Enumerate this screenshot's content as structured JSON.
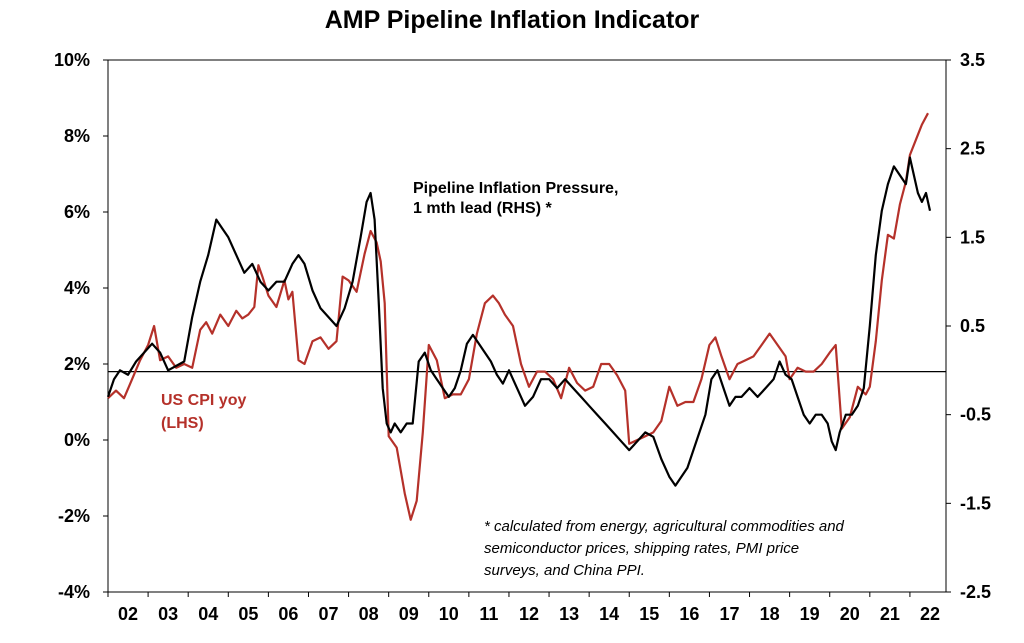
{
  "chart_data": {
    "type": "line",
    "title": "AMP Pipeline Inflation Indicator",
    "x_tick_labels": [
      "02",
      "03",
      "04",
      "05",
      "06",
      "07",
      "08",
      "09",
      "10",
      "11",
      "12",
      "13",
      "14",
      "15",
      "16",
      "17",
      "18",
      "19",
      "20",
      "21",
      "22"
    ],
    "y_left_tick_labels": [
      "10%",
      "8%",
      "6%",
      "4%",
      "2%",
      "0%",
      "-2%",
      "-4%"
    ],
    "y_right_tick_labels": [
      "3.5",
      "2.5",
      "1.5",
      "0.5",
      "-0.5",
      "-1.5",
      "-2.5"
    ],
    "y_left_lim": [
      -4,
      10
    ],
    "y_right_lim": [
      -2.5,
      3.5
    ],
    "x_lim": [
      2002.0,
      2022.9
    ],
    "reference_line_left": 1.8,
    "colors": {
      "cpi": "#b5312a",
      "pipeline": "#000000",
      "axis": "#000000"
    },
    "annotations": {
      "pipeline_label_line1": "Pipeline Inflation Pressure,",
      "pipeline_label_line2": "1 mth lead (RHS) *",
      "cpi_label_line1": "US CPI yoy",
      "cpi_label_line2": "(LHS)",
      "footnote_line1": "* calculated from energy, agricultural commodities and",
      "footnote_line2": "semiconductor prices, shipping rates, PMI price",
      "footnote_line3": "surveys, and China PPI."
    },
    "series": [
      {
        "name": "US CPI yoy",
        "axis": "left",
        "x": [
          2002.0,
          2002.2,
          2002.4,
          2002.6,
          2002.8,
          2003.0,
          2003.15,
          2003.3,
          2003.5,
          2003.7,
          2003.9,
          2004.1,
          2004.3,
          2004.45,
          2004.6,
          2004.8,
          2005.0,
          2005.2,
          2005.35,
          2005.5,
          2005.65,
          2005.75,
          2005.85,
          2006.0,
          2006.2,
          2006.4,
          2006.5,
          2006.6,
          2006.75,
          2006.9,
          2007.1,
          2007.3,
          2007.5,
          2007.7,
          2007.85,
          2008.0,
          2008.2,
          2008.4,
          2008.55,
          2008.7,
          2008.8,
          2008.9,
          2009.0,
          2009.2,
          2009.4,
          2009.55,
          2009.7,
          2009.85,
          2010.0,
          2010.2,
          2010.4,
          2010.6,
          2010.8,
          2011.0,
          2011.2,
          2011.4,
          2011.6,
          2011.75,
          2011.9,
          2012.1,
          2012.3,
          2012.5,
          2012.7,
          2012.9,
          2013.1,
          2013.3,
          2013.5,
          2013.7,
          2013.9,
          2014.1,
          2014.3,
          2014.5,
          2014.7,
          2014.9,
          2015.0,
          2015.2,
          2015.4,
          2015.6,
          2015.8,
          2016.0,
          2016.2,
          2016.4,
          2016.6,
          2016.8,
          2017.0,
          2017.15,
          2017.3,
          2017.5,
          2017.7,
          2017.9,
          2018.1,
          2018.3,
          2018.5,
          2018.7,
          2018.9,
          2019.0,
          2019.2,
          2019.4,
          2019.6,
          2019.8,
          2020.0,
          2020.15,
          2020.3,
          2020.5,
          2020.7,
          2020.9,
          2021.0,
          2021.15,
          2021.3,
          2021.45,
          2021.6,
          2021.75,
          2021.9,
          2022.0,
          2022.15,
          2022.3,
          2022.45
        ],
        "y": [
          1.1,
          1.3,
          1.1,
          1.6,
          2.1,
          2.5,
          3.0,
          2.1,
          2.2,
          1.9,
          2.0,
          1.9,
          2.9,
          3.1,
          2.8,
          3.3,
          3.0,
          3.4,
          3.2,
          3.3,
          3.5,
          4.6,
          4.3,
          3.8,
          3.5,
          4.2,
          3.7,
          3.9,
          2.1,
          2.0,
          2.6,
          2.7,
          2.4,
          2.6,
          4.3,
          4.2,
          3.9,
          4.9,
          5.5,
          5.2,
          4.7,
          3.6,
          0.1,
          -0.2,
          -1.4,
          -2.1,
          -1.6,
          0.2,
          2.5,
          2.1,
          1.1,
          1.2,
          1.2,
          1.6,
          2.8,
          3.6,
          3.8,
          3.6,
          3.3,
          3.0,
          2.0,
          1.4,
          1.8,
          1.8,
          1.6,
          1.1,
          1.9,
          1.5,
          1.3,
          1.4,
          2.0,
          2.0,
          1.7,
          1.3,
          -0.1,
          0.0,
          0.1,
          0.2,
          0.5,
          1.4,
          0.9,
          1.0,
          1.0,
          1.6,
          2.5,
          2.7,
          2.2,
          1.6,
          2.0,
          2.1,
          2.2,
          2.5,
          2.8,
          2.5,
          2.2,
          1.6,
          1.9,
          1.8,
          1.8,
          2.0,
          2.3,
          2.5,
          0.3,
          0.6,
          1.4,
          1.2,
          1.4,
          2.6,
          4.2,
          5.4,
          5.3,
          6.2,
          6.8,
          7.5,
          7.9,
          8.3,
          8.6
        ]
      },
      {
        "name": "Pipeline Inflation Pressure, 1 mth lead (RHS) *",
        "axis": "right",
        "x": [
          2002.0,
          2002.15,
          2002.3,
          2002.5,
          2002.7,
          2002.9,
          2003.1,
          2003.3,
          2003.5,
          2003.7,
          2003.9,
          2004.1,
          2004.3,
          2004.5,
          2004.7,
          2004.85,
          2005.0,
          2005.2,
          2005.4,
          2005.6,
          2005.8,
          2006.0,
          2006.2,
          2006.4,
          2006.6,
          2006.75,
          2006.9,
          2007.1,
          2007.3,
          2007.5,
          2007.7,
          2007.9,
          2008.1,
          2008.3,
          2008.45,
          2008.55,
          2008.65,
          2008.75,
          2008.85,
          2008.95,
          2009.05,
          2009.15,
          2009.3,
          2009.45,
          2009.6,
          2009.75,
          2009.9,
          2010.05,
          2010.2,
          2010.35,
          2010.5,
          2010.65,
          2010.8,
          2010.95,
          2011.1,
          2011.25,
          2011.4,
          2011.55,
          2011.7,
          2011.85,
          2012.0,
          2012.2,
          2012.4,
          2012.6,
          2012.8,
          2013.0,
          2013.2,
          2013.4,
          2013.6,
          2013.8,
          2014.0,
          2014.2,
          2014.4,
          2014.6,
          2014.8,
          2015.0,
          2015.2,
          2015.4,
          2015.6,
          2015.8,
          2016.0,
          2016.15,
          2016.3,
          2016.45,
          2016.6,
          2016.75,
          2016.9,
          2017.05,
          2017.2,
          2017.35,
          2017.5,
          2017.65,
          2017.8,
          2018.0,
          2018.2,
          2018.4,
          2018.6,
          2018.75,
          2018.9,
          2019.05,
          2019.2,
          2019.35,
          2019.5,
          2019.65,
          2019.8,
          2019.95,
          2020.05,
          2020.15,
          2020.25,
          2020.4,
          2020.55,
          2020.7,
          2020.85,
          2021.0,
          2021.15,
          2021.3,
          2021.45,
          2021.6,
          2021.75,
          2021.9,
          2022.0,
          2022.1,
          2022.2,
          2022.3,
          2022.4,
          2022.5
        ],
        "y": [
          -0.3,
          -0.1,
          0.0,
          -0.05,
          0.1,
          0.2,
          0.3,
          0.2,
          0.0,
          0.05,
          0.1,
          0.6,
          1.0,
          1.3,
          1.7,
          1.6,
          1.5,
          1.3,
          1.1,
          1.2,
          1.0,
          0.9,
          1.0,
          1.0,
          1.2,
          1.3,
          1.2,
          0.9,
          0.7,
          0.6,
          0.5,
          0.7,
          1.0,
          1.5,
          1.9,
          2.0,
          1.7,
          0.8,
          -0.2,
          -0.6,
          -0.7,
          -0.6,
          -0.7,
          -0.6,
          -0.6,
          0.1,
          0.2,
          0.0,
          -0.1,
          -0.2,
          -0.3,
          -0.2,
          0.0,
          0.3,
          0.4,
          0.3,
          0.2,
          0.1,
          -0.05,
          -0.15,
          0.0,
          -0.2,
          -0.4,
          -0.3,
          -0.1,
          -0.1,
          -0.2,
          -0.1,
          -0.2,
          -0.3,
          -0.4,
          -0.5,
          -0.6,
          -0.7,
          -0.8,
          -0.9,
          -0.8,
          -0.7,
          -0.75,
          -1.0,
          -1.2,
          -1.3,
          -1.2,
          -1.1,
          -0.9,
          -0.7,
          -0.5,
          -0.1,
          0.0,
          -0.2,
          -0.4,
          -0.3,
          -0.3,
          -0.2,
          -0.3,
          -0.2,
          -0.1,
          0.1,
          -0.05,
          -0.1,
          -0.3,
          -0.5,
          -0.6,
          -0.5,
          -0.5,
          -0.6,
          -0.8,
          -0.9,
          -0.7,
          -0.5,
          -0.5,
          -0.4,
          -0.2,
          0.5,
          1.3,
          1.8,
          2.1,
          2.3,
          2.2,
          2.1,
          2.4,
          2.2,
          2.0,
          1.9,
          2.0,
          1.8
        ]
      }
    ]
  }
}
